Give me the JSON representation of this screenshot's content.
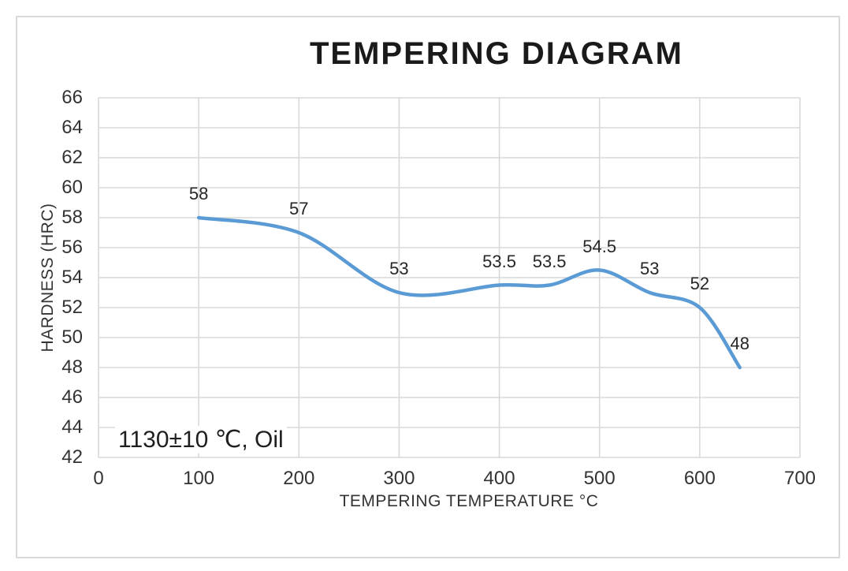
{
  "chart_data": {
    "type": "line",
    "title": "TEMPERING DIAGRAM",
    "xlabel": "TEMPERING TEMPERATURE °C",
    "ylabel": "HARDNESS (HRC)",
    "annotation": "1130±10 ℃, Oil",
    "x": [
      100,
      200,
      300,
      400,
      450,
      500,
      550,
      600,
      640
    ],
    "y": [
      58,
      57,
      53,
      53.5,
      53.5,
      54.5,
      53,
      52,
      48
    ],
    "data_labels": [
      "58",
      "57",
      "53",
      "53.5",
      "53.5",
      "54.5",
      "53",
      "52",
      "48"
    ],
    "xlim": [
      0,
      700
    ],
    "ylim": [
      42,
      66
    ],
    "xticks": [
      0,
      100,
      200,
      300,
      400,
      500,
      600,
      700
    ],
    "yticks": [
      42,
      44,
      46,
      48,
      50,
      52,
      54,
      56,
      58,
      60,
      62,
      64,
      66
    ],
    "grid": true,
    "smooth": true,
    "legend": "none"
  },
  "colors": {
    "line": "#5B9BD5",
    "grid": "#D9D9D9",
    "frame_border": "#D9D9D9",
    "text": "#333333",
    "title_text": "#1a1a1a"
  }
}
